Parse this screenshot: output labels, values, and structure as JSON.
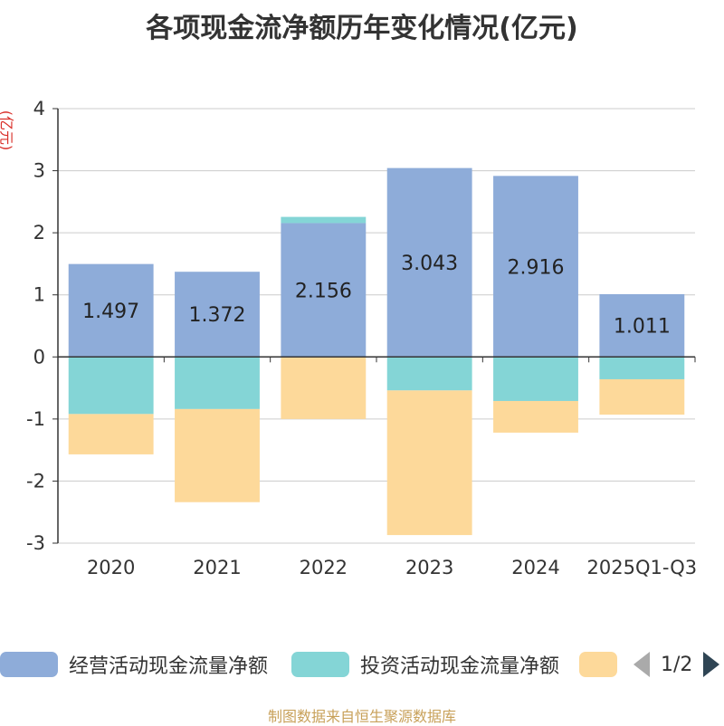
{
  "chart_data": {
    "type": "bar",
    "stacked": true,
    "title": "各项现金流净额历年变化情况(亿元)",
    "ylabel": "(亿元)",
    "xlabel": "",
    "categories": [
      "2020",
      "2021",
      "2022",
      "2023",
      "2024",
      "2025Q1-Q3"
    ],
    "ylim": [
      -3,
      4
    ],
    "yticks": [
      -3,
      -2,
      -1,
      0,
      1,
      2,
      3,
      4
    ],
    "grid": true,
    "series": [
      {
        "name": "经营活动现金流量净额",
        "color": "#8eacd9",
        "values": [
          1.497,
          1.372,
          2.156,
          3.043,
          2.916,
          1.011
        ],
        "labels": [
          "1.497",
          "1.372",
          "2.156",
          "3.043",
          "2.916",
          "1.011"
        ]
      },
      {
        "name": "投资活动现金流量净额",
        "color": "#84d5d6",
        "values": [
          -0.92,
          -0.84,
          0.1,
          -0.54,
          -0.71,
          -0.36
        ]
      },
      {
        "name": "",
        "color": "#fdd99a",
        "values": [
          -0.65,
          -1.5,
          -1.0,
          -2.33,
          -0.51,
          -0.57
        ]
      }
    ]
  },
  "legend": {
    "items": [
      {
        "label": "经营活动现金流量净额",
        "color": "#8eacd9"
      },
      {
        "label": "投资活动现金流量净额",
        "color": "#84d5d6"
      },
      {
        "label": "",
        "color": "#fdd99a"
      }
    ],
    "page": "1/2"
  },
  "source": "制图数据来自恒生聚源数据库"
}
